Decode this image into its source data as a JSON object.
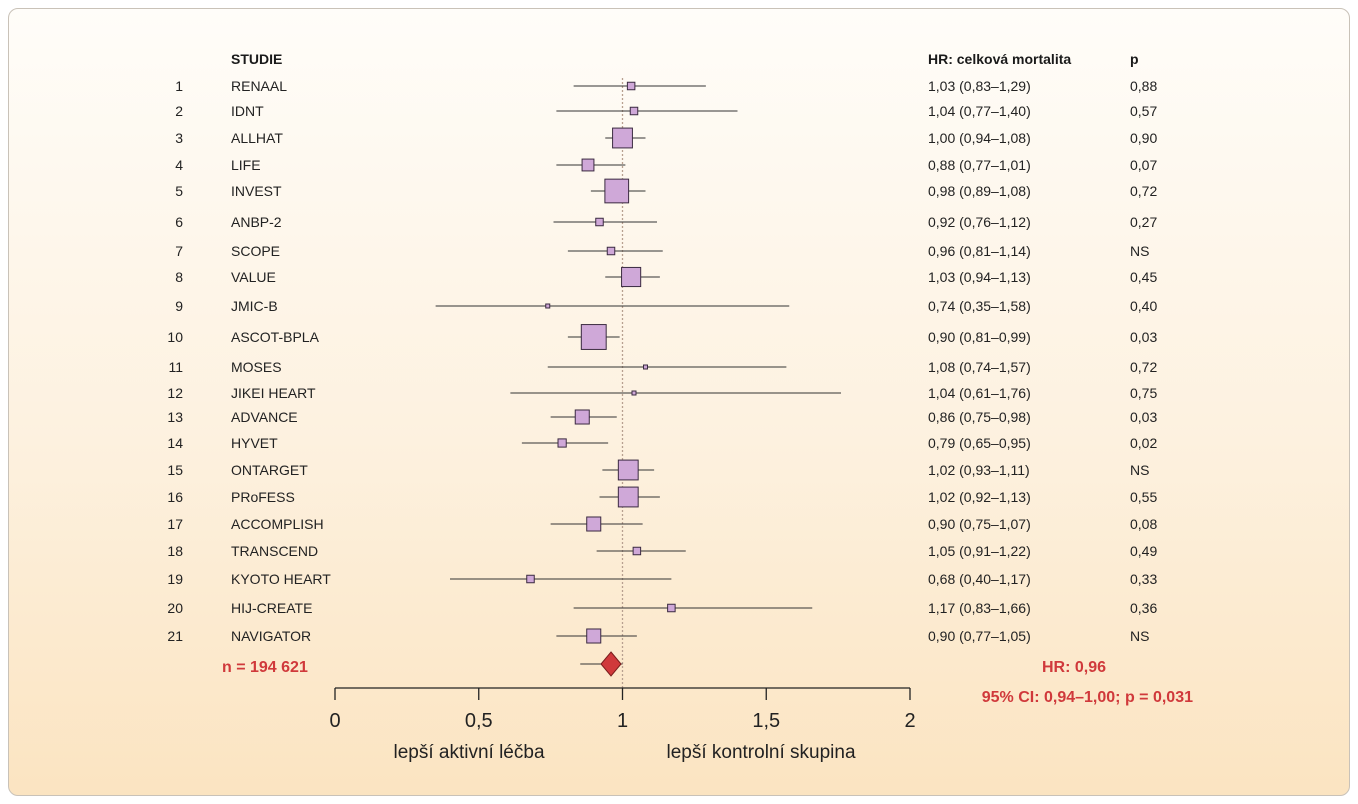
{
  "chart_data": {
    "type": "forest",
    "headers": {
      "study": "STUDIE",
      "hr": "HR: celková mortalita",
      "p": "p"
    },
    "studies": [
      {
        "num": "1",
        "name": "RENAAL",
        "hr": 1.03,
        "lo": 0.83,
        "hi": 1.29,
        "hr_text": "1,03 (0,83–1,29)",
        "p": "0,88",
        "weight": 1
      },
      {
        "num": "2",
        "name": "IDNT",
        "hr": 1.04,
        "lo": 0.77,
        "hi": 1.4,
        "hr_text": "1,04 (0,77–1,40)",
        "p": "0,57",
        "weight": 1
      },
      {
        "num": "3",
        "name": "ALLHAT",
        "hr": 1.0,
        "lo": 0.94,
        "hi": 1.08,
        "hr_text": "1,00 (0,94–1,08)",
        "p": "0,90",
        "weight": 7
      },
      {
        "num": "4",
        "name": "LIFE",
        "hr": 0.88,
        "lo": 0.77,
        "hi": 1.01,
        "hr_text": "0,88 (0,77–1,01)",
        "p": "0,07",
        "weight": 2.5
      },
      {
        "num": "5",
        "name": "INVEST",
        "hr": 0.98,
        "lo": 0.89,
        "hi": 1.08,
        "hr_text": "0,98 (0,89–1,08)",
        "p": "0,72",
        "weight": 10
      },
      {
        "num": "6",
        "name": "ANBP-2",
        "hr": 0.92,
        "lo": 0.76,
        "hi": 1.12,
        "hr_text": "0,92 (0,76–1,12)",
        "p": "0,27",
        "weight": 1
      },
      {
        "num": "7",
        "name": "SCOPE",
        "hr": 0.96,
        "lo": 0.81,
        "hi": 1.14,
        "hr_text": "0,96 (0,81–1,14)",
        "p": "NS",
        "weight": 1
      },
      {
        "num": "8",
        "name": "VALUE",
        "hr": 1.03,
        "lo": 0.94,
        "hi": 1.13,
        "hr_text": "1,03 (0,94–1,13)",
        "p": "0,45",
        "weight": 6.5
      },
      {
        "num": "9",
        "name": "JMIC-B",
        "hr": 0.74,
        "lo": 0.35,
        "hi": 1.58,
        "hr_text": "0,74 (0,35–1,58)",
        "p": "0,40",
        "weight": 0.2
      },
      {
        "num": "10",
        "name": "ASCOT-BPLA",
        "hr": 0.9,
        "lo": 0.81,
        "hi": 0.99,
        "hr_text": "0,90 (0,81–0,99)",
        "p": "0,03",
        "weight": 11
      },
      {
        "num": "11",
        "name": "MOSES",
        "hr": 1.08,
        "lo": 0.74,
        "hi": 1.57,
        "hr_text": "1,08 (0,74–1,57)",
        "p": "0,72",
        "weight": 0.2
      },
      {
        "num": "12",
        "name": "JIKEI HEART",
        "hr": 1.04,
        "lo": 0.61,
        "hi": 1.76,
        "hr_text": "1,04 (0,61–1,76)",
        "p": "0,75",
        "weight": 0.15
      },
      {
        "num": "13",
        "name": "ADVANCE",
        "hr": 0.86,
        "lo": 0.75,
        "hi": 0.98,
        "hr_text": "0,86 (0,75–0,98)",
        "p": "0,03",
        "weight": 3.5
      },
      {
        "num": "14",
        "name": "HYVET",
        "hr": 0.79,
        "lo": 0.65,
        "hi": 0.95,
        "hr_text": "0,79 (0,65–0,95)",
        "p": "0,02",
        "weight": 1.2
      },
      {
        "num": "15",
        "name": "ONTARGET",
        "hr": 1.02,
        "lo": 0.93,
        "hi": 1.11,
        "hr_text": "1,02 (0,93–1,11)",
        "p": "NS",
        "weight": 7
      },
      {
        "num": "16",
        "name": "PRoFESS",
        "hr": 1.02,
        "lo": 0.92,
        "hi": 1.13,
        "hr_text": "1,02 (0,92–1,13)",
        "p": "0,55",
        "weight": 7
      },
      {
        "num": "17",
        "name": "ACCOMPLISH",
        "hr": 0.9,
        "lo": 0.75,
        "hi": 1.07,
        "hr_text": "0,90 (0,75–1,07)",
        "p": "0,08",
        "weight": 3.5
      },
      {
        "num": "18",
        "name": "TRANSCEND",
        "hr": 1.05,
        "lo": 0.91,
        "hi": 1.22,
        "hr_text": "1,05 (0,91–1,22)",
        "p": "0,49",
        "weight": 1
      },
      {
        "num": "19",
        "name": "KYOTO HEART",
        "hr": 0.68,
        "lo": 0.4,
        "hi": 1.17,
        "hr_text": "0,68 (0,40–1,17)",
        "p": "0,33",
        "weight": 1
      },
      {
        "num": "20",
        "name": "HIJ-CREATE",
        "hr": 1.17,
        "lo": 0.83,
        "hi": 1.66,
        "hr_text": "1,17 (0,83–1,66)",
        "p": "0,36",
        "weight": 1
      },
      {
        "num": "21",
        "name": "NAVIGATOR",
        "hr": 0.9,
        "lo": 0.77,
        "hi": 1.05,
        "hr_text": "0,90 (0,77–1,05)",
        "p": "NS",
        "weight": 3.5
      }
    ],
    "summary": {
      "hr": 0.96,
      "lo": 0.94,
      "hi": 1.0,
      "n_label": "n = 194 621",
      "hr_label": "HR: 0,96",
      "ci_label": "95% CI: 0,94–1,00; p = 0,031"
    },
    "x_axis": {
      "range": [
        0,
        2
      ],
      "ticks": [
        0,
        0.5,
        1,
        1.5,
        2
      ],
      "tick_labels": [
        "0",
        "0,5",
        "1",
        "1,5",
        "2"
      ],
      "reference_line": 1,
      "left_label": "lepší aktivní léčba",
      "right_label": "lepší kontrolní skupina"
    },
    "colors": {
      "box_fill": "#cfa8d8",
      "box_stroke": "#3a2a40",
      "ci_line": "#333333",
      "diamond": "#d0393b",
      "reference": "#b8a090",
      "accent_text": "#d0393b"
    }
  }
}
